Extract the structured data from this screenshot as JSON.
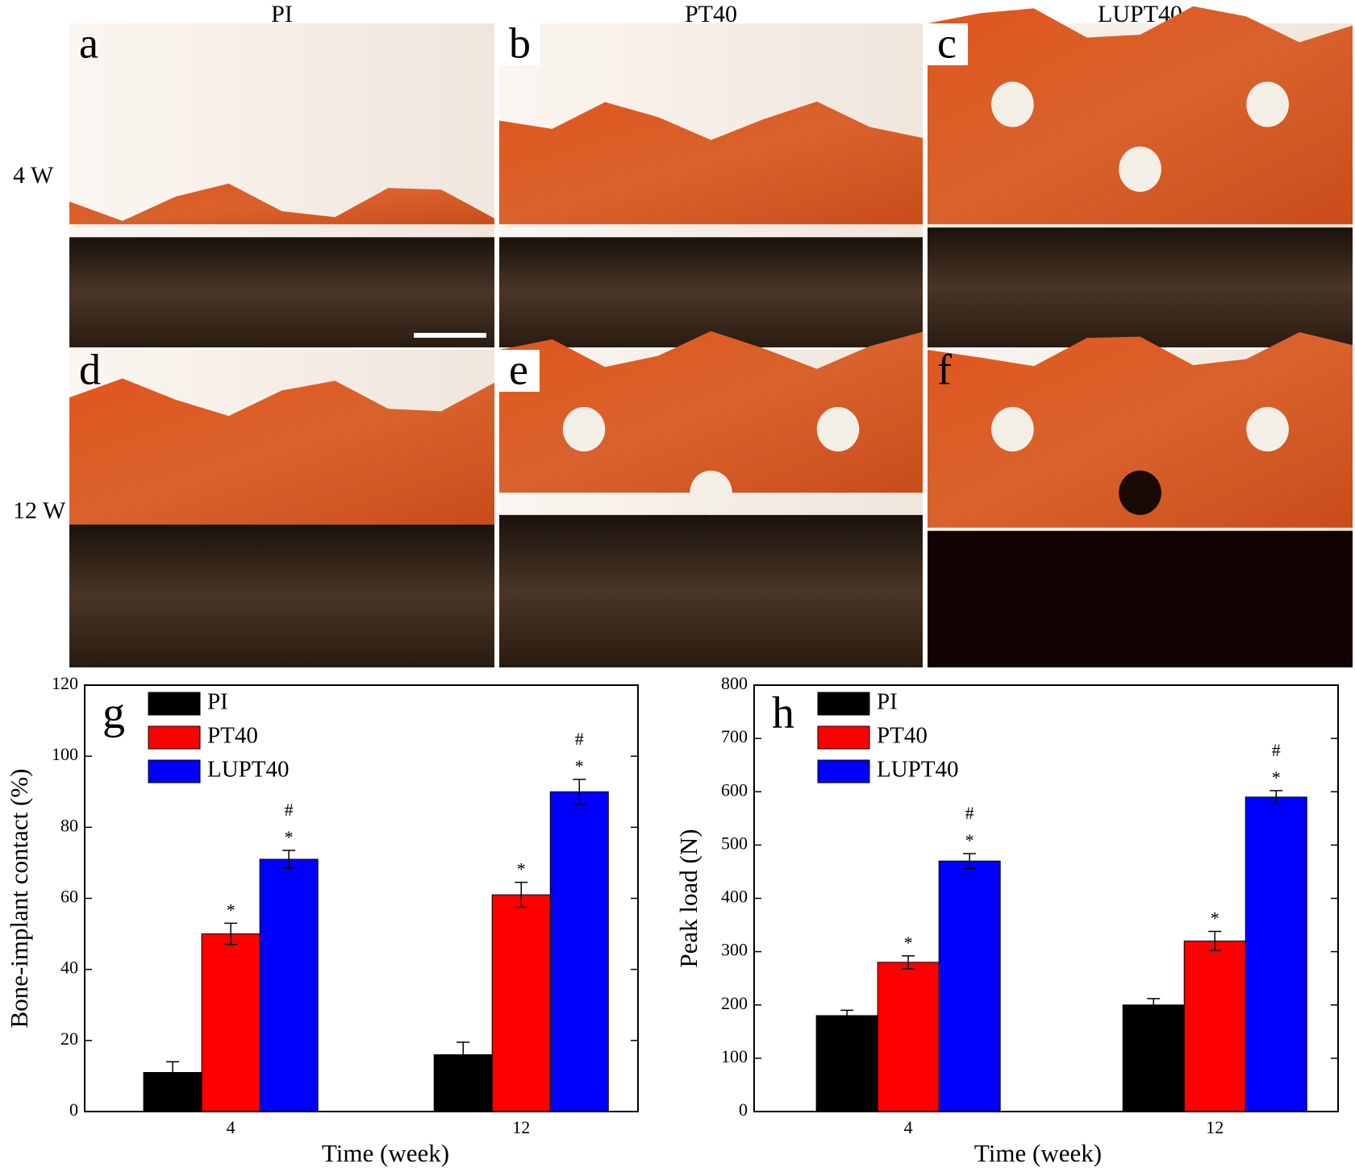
{
  "image_panels": {
    "columns": [
      "PI",
      "PT40",
      "LUPT40"
    ],
    "rows": [
      "4 W",
      "12 W"
    ],
    "letters": [
      "a",
      "b",
      "c",
      "d",
      "e",
      "f"
    ]
  },
  "chart_data": [
    {
      "type": "bar",
      "panel_label": "g",
      "xlabel": "Time (week)",
      "ylabel": "Bone-implant contact (%)",
      "categories": [
        "4",
        "12"
      ],
      "series": [
        {
          "name": "PI",
          "color": "#000000",
          "values": [
            11,
            16
          ],
          "errors": [
            3,
            3.5
          ]
        },
        {
          "name": "PT40",
          "color": "#ff0000",
          "values": [
            50,
            61
          ],
          "errors": [
            3,
            3.5
          ],
          "significance": [
            [
              "*"
            ],
            [
              "*"
            ]
          ]
        },
        {
          "name": "LUPT40",
          "color": "#0000ff",
          "values": [
            71,
            90
          ],
          "errors": [
            2.5,
            3.5
          ],
          "significance": [
            [
              "*",
              "#"
            ],
            [
              "*",
              "#"
            ]
          ]
        }
      ],
      "ylim": [
        0,
        120
      ],
      "yticks": [
        0,
        20,
        40,
        60,
        80,
        100,
        120
      ],
      "legend": "upper left"
    },
    {
      "type": "bar",
      "panel_label": "h",
      "xlabel": "Time (week)",
      "ylabel": "Peak load (N)",
      "categories": [
        "4",
        "12"
      ],
      "series": [
        {
          "name": "PI",
          "color": "#000000",
          "values": [
            180,
            200
          ],
          "errors": [
            10,
            12
          ]
        },
        {
          "name": "PT40",
          "color": "#ff0000",
          "values": [
            280,
            320
          ],
          "errors": [
            12,
            18
          ],
          "significance": [
            [
              "*"
            ],
            [
              "*"
            ]
          ]
        },
        {
          "name": "LUPT40",
          "color": "#0000ff",
          "values": [
            470,
            590
          ],
          "errors": [
            14,
            12
          ],
          "significance": [
            [
              "*",
              "#"
            ],
            [
              "*",
              "#"
            ]
          ]
        }
      ],
      "ylim": [
        0,
        800
      ],
      "yticks": [
        0,
        100,
        200,
        300,
        400,
        500,
        600,
        700,
        800
      ],
      "legend": "upper left"
    }
  ]
}
